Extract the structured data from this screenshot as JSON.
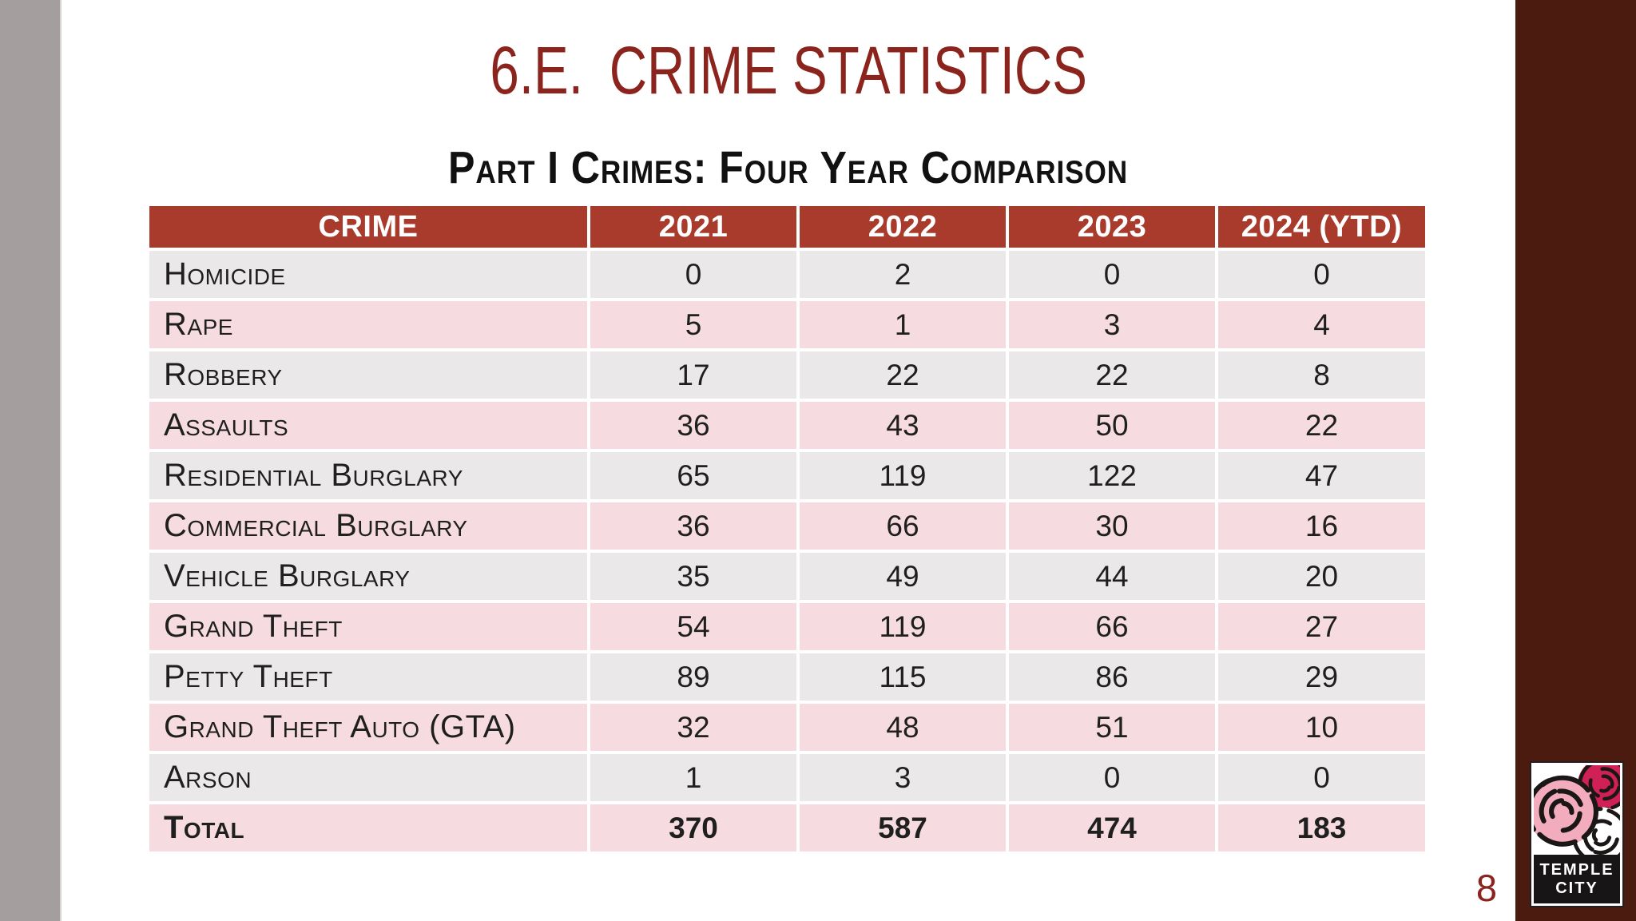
{
  "slide": {
    "title_prefix": "6.E.",
    "title_text": "CRIME STATISTICS",
    "subtitle": "Part I Crimes: Four Year Comparison",
    "page_number": "8"
  },
  "table": {
    "columns": [
      "CRIME",
      "2021",
      "2022",
      "2023",
      "2024 (YTD)"
    ],
    "rows": [
      {
        "crime": "Homicide",
        "values": [
          "0",
          "2",
          "0",
          "0"
        ]
      },
      {
        "crime": "Rape",
        "values": [
          "5",
          "1",
          "3",
          "4"
        ]
      },
      {
        "crime": "Robbery",
        "values": [
          "17",
          "22",
          "22",
          "8"
        ]
      },
      {
        "crime": "Assaults",
        "values": [
          "36",
          "43",
          "50",
          "22"
        ]
      },
      {
        "crime": "Residential Burglary",
        "values": [
          "65",
          "119",
          "122",
          "47"
        ]
      },
      {
        "crime": "Commercial Burglary",
        "values": [
          "36",
          "66",
          "30",
          "16"
        ]
      },
      {
        "crime": "Vehicle Burglary",
        "values": [
          "35",
          "49",
          "44",
          "20"
        ]
      },
      {
        "crime": "Grand Theft",
        "values": [
          "54",
          "119",
          "66",
          "27"
        ]
      },
      {
        "crime": "Petty Theft",
        "values": [
          "89",
          "115",
          "86",
          "29"
        ]
      },
      {
        "crime": "Grand Theft Auto (GTA)",
        "values": [
          "32",
          "48",
          "51",
          "10"
        ]
      },
      {
        "crime": "Arson",
        "values": [
          "1",
          "3",
          "0",
          "0"
        ]
      }
    ],
    "total": {
      "label": "Total",
      "values": [
        "370",
        "587",
        "474",
        "183"
      ]
    }
  },
  "logo": {
    "line1": "TEMPLE",
    "line2": "CITY"
  },
  "colors": {
    "title_red": "#8B241D",
    "header_red": "#A83B2C",
    "row_gray": "#EAE8E9",
    "row_pink": "#F6DCE0",
    "side_bar_maroon": "#4C1B10",
    "side_bar_gray": "#A49E9E",
    "logo_pink": "#F3ACBD",
    "logo_crimson": "#D02055"
  }
}
